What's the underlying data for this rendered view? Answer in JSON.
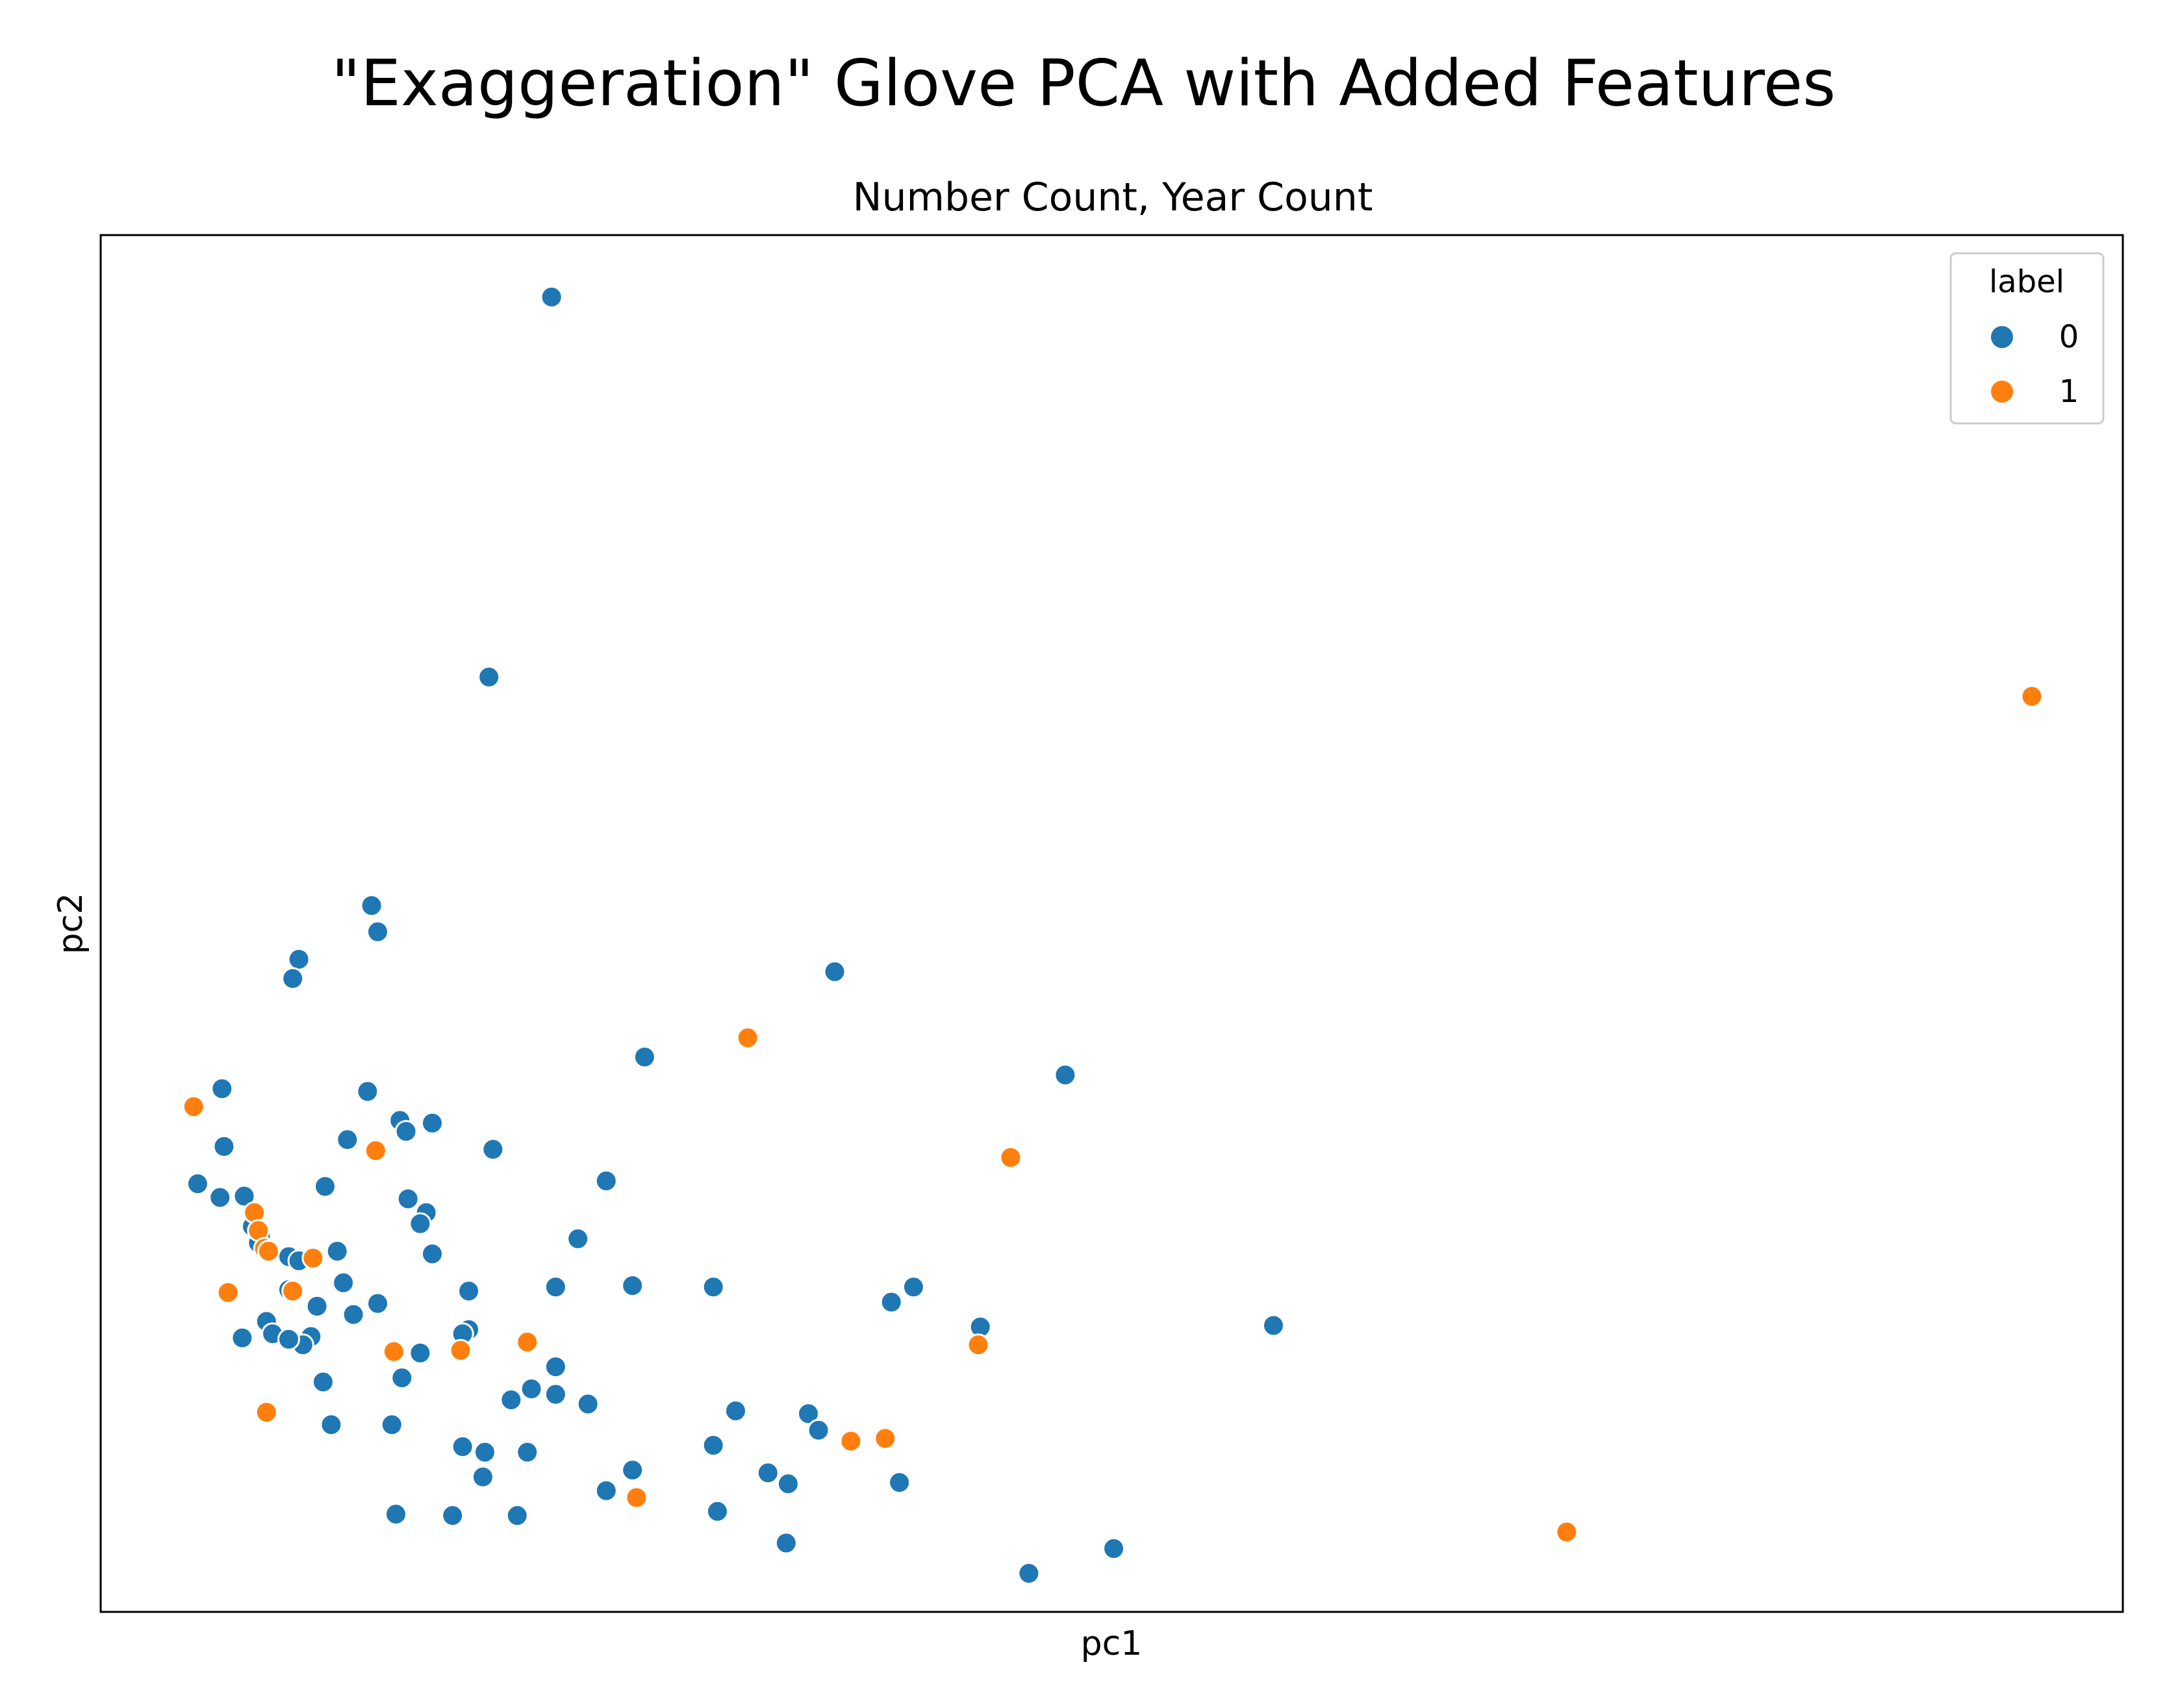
{
  "chart_data": {
    "type": "scatter",
    "suptitle": "\"Exaggeration\" Glove PCA with Added Features",
    "title": "Number Count, Year Count",
    "xlabel": "pc1",
    "ylabel": "pc2",
    "xlim": [
      0,
      100
    ],
    "ylim": [
      0,
      100
    ],
    "grid": false,
    "ticks": false,
    "legend": {
      "title": "label",
      "placement": "top-right",
      "entries": [
        "0",
        "1"
      ]
    },
    "colors": {
      "0": "#1f77b4",
      "1": "#ff7f0e"
    },
    "series": [
      {
        "name": "0",
        "points": [
          [
            22.3,
            95.5
          ],
          [
            19.2,
            67.9
          ],
          [
            13.4,
            51.3
          ],
          [
            13.7,
            49.4
          ],
          [
            9.8,
            47.4
          ],
          [
            9.5,
            46.0
          ],
          [
            36.3,
            46.5
          ],
          [
            47.7,
            39.0
          ],
          [
            26.9,
            40.3
          ],
          [
            6.0,
            38.0
          ],
          [
            13.2,
            37.8
          ],
          [
            14.8,
            35.7
          ],
          [
            15.1,
            34.9
          ],
          [
            12.2,
            34.3
          ],
          [
            16.4,
            35.5
          ],
          [
            6.1,
            33.8
          ],
          [
            19.4,
            33.6
          ],
          [
            4.8,
            31.1
          ],
          [
            5.9,
            30.1
          ],
          [
            7.1,
            30.2
          ],
          [
            11.1,
            30.9
          ],
          [
            25.0,
            31.3
          ],
          [
            7.5,
            28.0
          ],
          [
            7.9,
            27.3
          ],
          [
            15.2,
            30.0
          ],
          [
            16.1,
            29.0
          ],
          [
            15.8,
            28.2
          ],
          [
            7.8,
            26.8
          ],
          [
            8.4,
            26.2
          ],
          [
            9.3,
            25.8
          ],
          [
            9.8,
            25.5
          ],
          [
            11.7,
            26.2
          ],
          [
            16.4,
            26.0
          ],
          [
            23.6,
            27.1
          ],
          [
            12.0,
            23.9
          ],
          [
            9.3,
            23.4
          ],
          [
            10.7,
            22.2
          ],
          [
            13.7,
            22.4
          ],
          [
            12.5,
            21.6
          ],
          [
            8.2,
            21.1
          ],
          [
            8.5,
            20.2
          ],
          [
            10.4,
            20.0
          ],
          [
            18.2,
            23.3
          ],
          [
            22.5,
            23.6
          ],
          [
            26.3,
            23.7
          ],
          [
            30.3,
            23.6
          ],
          [
            40.2,
            23.6
          ],
          [
            39.1,
            22.5
          ],
          [
            43.5,
            20.7
          ],
          [
            58.0,
            20.8
          ],
          [
            18.2,
            20.5
          ],
          [
            17.9,
            20.2
          ],
          [
            7.0,
            19.9
          ],
          [
            10.0,
            19.4
          ],
          [
            9.3,
            19.8
          ],
          [
            15.8,
            18.8
          ],
          [
            14.9,
            17.0
          ],
          [
            11.0,
            16.7
          ],
          [
            24.1,
            15.1
          ],
          [
            20.3,
            15.4
          ],
          [
            22.5,
            17.8
          ],
          [
            22.5,
            15.8
          ],
          [
            21.3,
            16.2
          ],
          [
            35.0,
            14.4
          ],
          [
            31.4,
            14.6
          ],
          [
            19.0,
            11.6
          ],
          [
            21.1,
            11.6
          ],
          [
            18.9,
            9.8
          ],
          [
            11.4,
            13.6
          ],
          [
            14.4,
            13.6
          ],
          [
            17.9,
            12.0
          ],
          [
            30.3,
            12.1
          ],
          [
            35.5,
            13.2
          ],
          [
            26.3,
            10.3
          ],
          [
            33.0,
            10.1
          ],
          [
            34.0,
            9.3
          ],
          [
            39.5,
            9.4
          ],
          [
            30.5,
            7.3
          ],
          [
            20.6,
            7.0
          ],
          [
            17.4,
            7.0
          ],
          [
            14.6,
            7.1
          ],
          [
            25.0,
            8.8
          ],
          [
            33.9,
            5.0
          ],
          [
            50.1,
            4.6
          ],
          [
            45.9,
            2.8
          ]
        ]
      },
      {
        "name": "1",
        "points": [
          [
            4.6,
            36.7
          ],
          [
            13.6,
            33.5
          ],
          [
            45.0,
            33.0
          ],
          [
            7.6,
            29.0
          ],
          [
            7.8,
            27.7
          ],
          [
            8.1,
            26.4
          ],
          [
            8.3,
            26.2
          ],
          [
            10.5,
            25.7
          ],
          [
            6.3,
            23.2
          ],
          [
            9.5,
            23.3
          ],
          [
            21.1,
            19.6
          ],
          [
            17.8,
            19.0
          ],
          [
            43.4,
            19.4
          ],
          [
            14.5,
            18.9
          ],
          [
            8.2,
            14.5
          ],
          [
            38.8,
            12.6
          ],
          [
            26.5,
            8.3
          ],
          [
            72.5,
            5.8
          ],
          [
            95.5,
            66.5
          ],
          [
            32.0,
            41.7
          ],
          [
            37.1,
            12.4
          ]
        ]
      }
    ]
  }
}
